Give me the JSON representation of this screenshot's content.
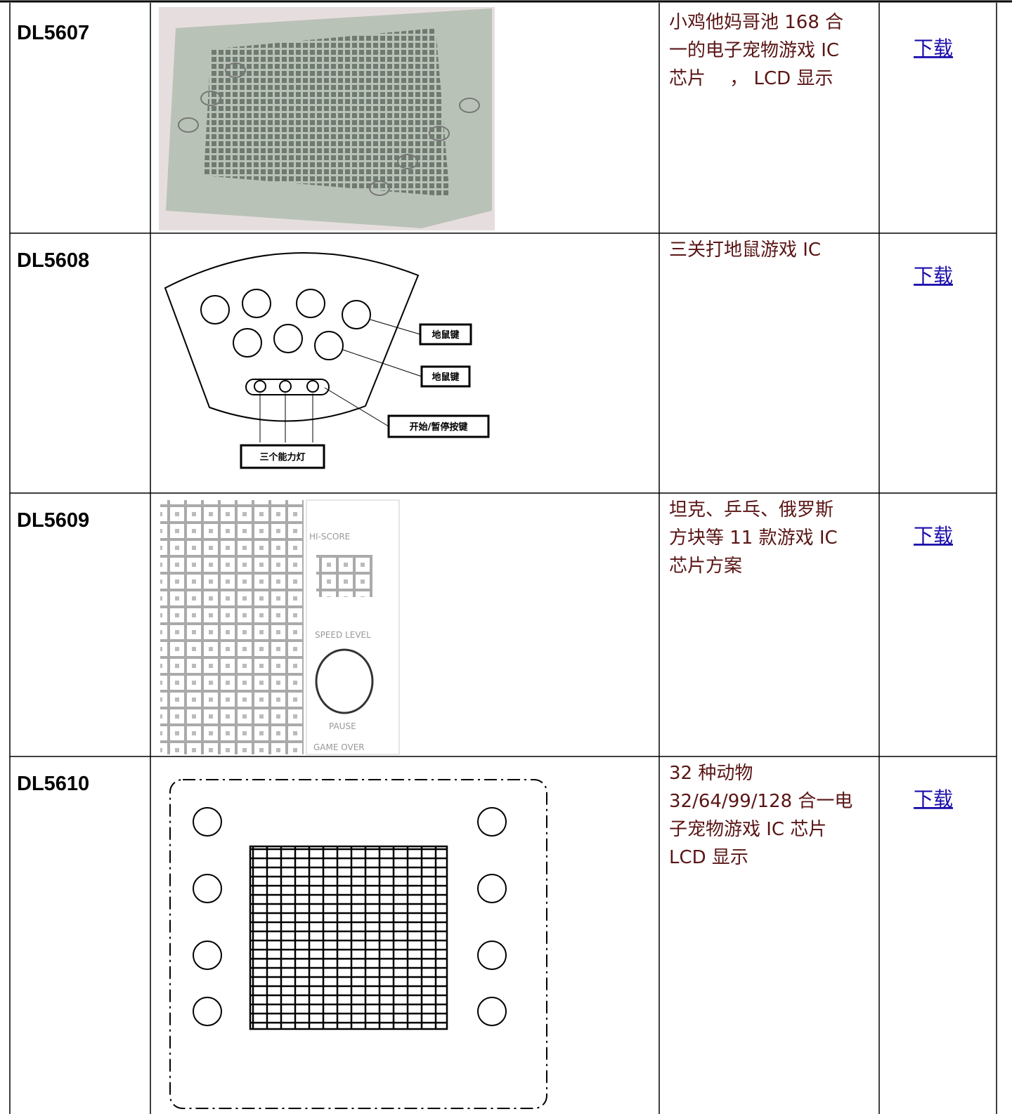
{
  "table": {
    "rows": [
      {
        "code": "DL5607",
        "description": [
          "小鸡他妈哥池 168 合",
          "一的电子宠物游戏 IC",
          "芯片　 ， LCD 显示"
        ],
        "link": "下载"
      },
      {
        "code": "DL5608",
        "description": [
          "三关打地鼠游戏 IC"
        ],
        "link": "下载",
        "image_labels": [
          "地鼠键",
          "地鼠键",
          "开始/暂停按键",
          "三个能力灯"
        ]
      },
      {
        "code": "DL5609",
        "description": [
          "坦克、乒乓、俄罗斯",
          "方块等 11 款游戏 IC",
          "芯片方案"
        ],
        "link": "下载",
        "image_labels": [
          "HI-SCORE",
          "SPEED LEVEL",
          "PAUSE",
          "GAME OVER"
        ]
      },
      {
        "code": "DL5610",
        "description": [
          "32 种动物",
          "32/64/99/128 合一电",
          "子宠物游戏 IC 芯片",
          "LCD 显示"
        ],
        "link": "下载"
      }
    ]
  }
}
